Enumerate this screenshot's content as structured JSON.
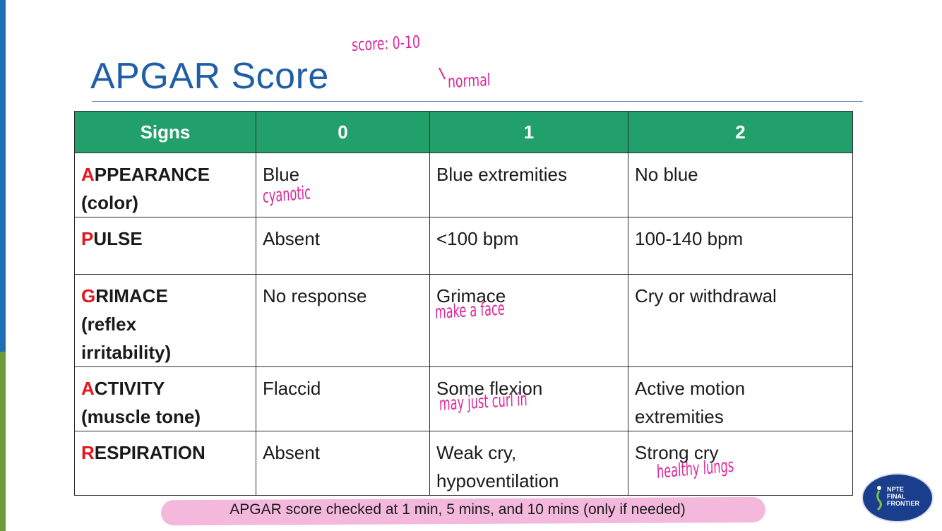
{
  "slide": {
    "title": "APGAR Score",
    "annotations": {
      "score_range": "score: 0-10",
      "normal": "normal",
      "blue_note": "cyanotic",
      "grimace_note": "make a face",
      "flexion_note": "may just curl in",
      "strong_cry_note": "healthy lungs"
    },
    "colors": {
      "title": "#1f5fa5",
      "header_bg": "#22a06b",
      "first_letter": "#e3151d",
      "handwriting": "#e0259a",
      "highlight": "#f4b8dc"
    }
  },
  "table": {
    "headers": [
      "Signs",
      "0",
      "1",
      "2"
    ],
    "rows": [
      {
        "first": "A",
        "rest": "PPEARANCE",
        "sub": "(color)",
        "c0": "Blue",
        "c1": "Blue extremities",
        "c2": "No blue"
      },
      {
        "first": "P",
        "rest": "ULSE",
        "sub": "",
        "c0": "Absent",
        "c1": "<100 bpm",
        "c2": "100-140 bpm"
      },
      {
        "first": "G",
        "rest": "RIMACE",
        "sub": "(reflex irritability)",
        "c0": "No response",
        "c1": "Grimace",
        "c2": "Cry or withdrawal"
      },
      {
        "first": "A",
        "rest": "CTIVITY",
        "sub": "(muscle tone)",
        "c0": "Flaccid",
        "c1": "Some flexion",
        "c2": "Active motion extremities"
      },
      {
        "first": "R",
        "rest": "ESPIRATION",
        "sub": "",
        "c0": "Absent",
        "c1": "Weak cry, hypoventilation",
        "c2": "Strong cry"
      }
    ]
  },
  "footnote": "APGAR score checked at 1 min, 5 mins, and 10 mins (only if needed)",
  "logo": {
    "icon": "runner-logo-icon",
    "text": "NPTE\nFINAL\nFRONTIER"
  }
}
